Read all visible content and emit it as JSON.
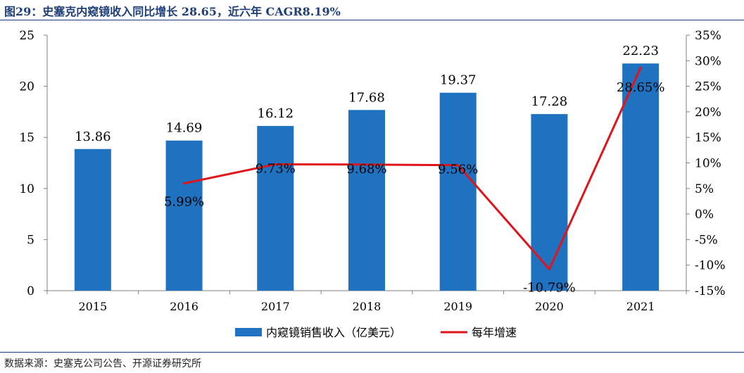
{
  "title": "图29：史塞克内窥镜收入同比增长 28.65，近六年 CAGR8.19%",
  "source": "数据来源：史塞克公司公告、开源证券研究所",
  "colors": {
    "bar": "#1f72c0",
    "line": "#e0151b",
    "title": "#1f3f7a"
  },
  "chart_data": {
    "type": "bar",
    "categories": [
      "2015",
      "2016",
      "2017",
      "2018",
      "2019",
      "2020",
      "2021"
    ],
    "series": [
      {
        "name": "内窥镜销售收入（亿美元）",
        "type": "bar",
        "axis": "left",
        "values": [
          13.86,
          14.69,
          16.12,
          17.68,
          19.37,
          17.28,
          22.23
        ],
        "labels": [
          "13.86",
          "14.69",
          "16.12",
          "17.68",
          "19.37",
          "17.28",
          "22.23"
        ]
      },
      {
        "name": "每年增速",
        "type": "line",
        "axis": "right",
        "values": [
          null,
          5.99,
          9.73,
          9.68,
          9.56,
          -10.79,
          28.65
        ],
        "labels": [
          "",
          "5.99%",
          "9.73%",
          "9.68%",
          "9.56%",
          "-10.79%",
          "28.65%"
        ]
      }
    ],
    "y_left": {
      "min": 0,
      "max": 25,
      "ticks": [
        "0",
        "5",
        "10",
        "15",
        "20",
        "25"
      ]
    },
    "y_right": {
      "min": -15,
      "max": 35,
      "ticks": [
        "-15%",
        "-10%",
        "-5%",
        "0%",
        "5%",
        "10%",
        "15%",
        "20%",
        "25%",
        "30%",
        "35%"
      ]
    },
    "legend": "bottom",
    "grid": false
  }
}
